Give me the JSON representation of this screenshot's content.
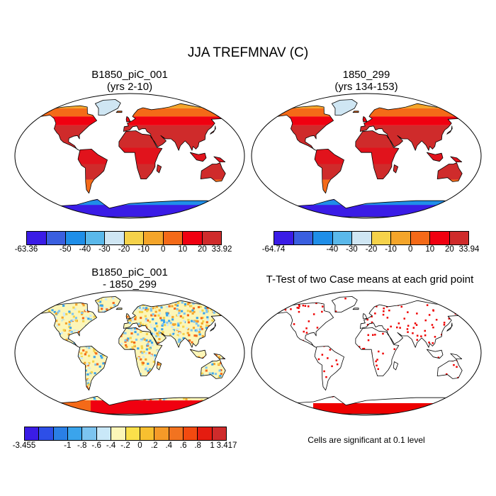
{
  "main_title": "JJA TREFMNAV (C)",
  "panels": {
    "top_left": {
      "title_line1": "B1850_piC_001",
      "title_line2": "(yrs 2-10)"
    },
    "top_right": {
      "title_line1": "1850_299",
      "title_line2": "(yrs 134-153)"
    },
    "bottom_left": {
      "title_line1": "B1850_piC_001",
      "title_line2": "- 1850_299"
    },
    "bottom_right": {
      "title": "T-Test of two Case means at each grid point",
      "note": "Cells are significant at 0.1 level"
    }
  },
  "colorbars": {
    "top_left": {
      "colors": [
        "#3a1ce6",
        "#3a5fe0",
        "#1f8ee8",
        "#5ab8ea",
        "#cfe6f3",
        "#f5d24a",
        "#f4a52a",
        "#f46a18",
        "#f00010",
        "#cf2b2b"
      ],
      "labels": [
        "-63.36",
        "-50",
        "-40",
        "-30",
        "-20",
        "-10",
        "0",
        "10",
        "20",
        "33.92"
      ]
    },
    "top_right": {
      "colors": [
        "#3a1ce6",
        "#3a5fe0",
        "#1f8ee8",
        "#5ab8ea",
        "#cfe6f3",
        "#f5d24a",
        "#f4a52a",
        "#f46a18",
        "#f00010",
        "#cf2b2b"
      ],
      "labels": [
        "-64.74",
        "-40",
        "-30",
        "-20",
        "-10",
        "0",
        "10",
        "20",
        "33.94"
      ]
    },
    "bottom_left": {
      "colors": [
        "#3a1ce6",
        "#2d4fe8",
        "#2a7fe6",
        "#3aa4ec",
        "#7cc4f0",
        "#c9e8f8",
        "#fcf6b8",
        "#fbe04a",
        "#f7c030",
        "#f59a28",
        "#f27320",
        "#f24a10",
        "#e51c10",
        "#cf2b2b"
      ],
      "labels": [
        "-3.455",
        "-1",
        "-.8",
        "-.6",
        "-.4",
        "-.2",
        "0",
        ".2",
        ".4",
        ".6",
        ".8",
        "1",
        "3.417"
      ]
    }
  },
  "map_palette": {
    "ocean": "#ffffff",
    "coast": "#000000",
    "signif": "#ee0000",
    "antarctica_cold": [
      "#3a1ce6",
      "#3a5fe0",
      "#1f8ee8",
      "#5ab8ea"
    ],
    "warm": [
      "#cf2b2b",
      "#f00010",
      "#f46a18",
      "#f4a52a",
      "#f5d24a"
    ],
    "diff": [
      "#f46a18",
      "#f4a52a",
      "#f5d24a",
      "#fcf6b8",
      "#c9e8f8",
      "#7cc4f0",
      "#3aa4ec"
    ]
  }
}
